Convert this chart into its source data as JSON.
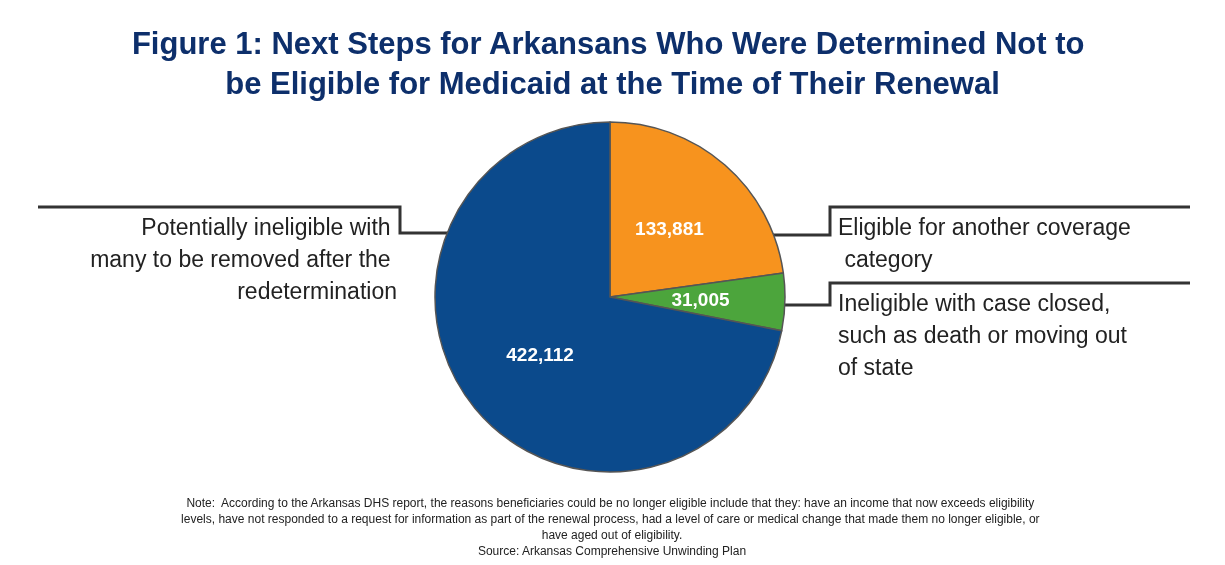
{
  "chart_data": {
    "type": "pie",
    "title": "Figure 1: Next Steps for Arkansans Who Were Determined Not to be Eligible for Medicaid at the Time of Their Renewal",
    "categories": [
      "Eligible for another coverage category",
      "Ineligible with case closed, such as death or moving out of state",
      "Potentially ineligible with many to be removed after the redetermination"
    ],
    "values": [
      133881,
      31005,
      422112
    ],
    "colors": [
      "#f7931e",
      "#4ca53c",
      "#0b4a8c"
    ],
    "value_labels": [
      "133,881",
      "31,005",
      "422,112"
    ],
    "legend": false,
    "annotations": [
      "Note:  According to the Arkansas DHS report, the reasons beneficiaries could be no longer eligible include that they: have an income that now exceeds eligibility levels, have not responded to a request for information as part of the renewal process, had a level of care or medical change that made them no longer eligible, or have aged out of eligibility.",
      "Source: Arkansas Comprehensive Unwinding Plan"
    ]
  }
}
